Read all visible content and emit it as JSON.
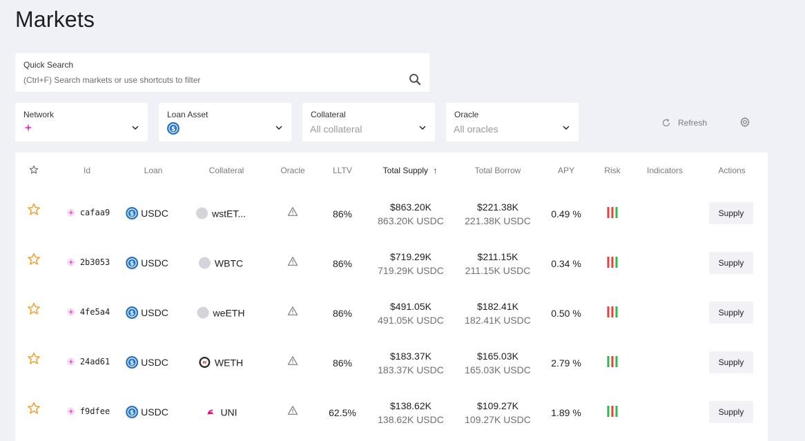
{
  "page": {
    "title": "Markets"
  },
  "search": {
    "label": "Quick Search",
    "placeholder": "(Ctrl+F) Search markets or use shortcuts to filter"
  },
  "filters": [
    {
      "label": "Network",
      "value": ""
    },
    {
      "label": "Loan Asset",
      "value": ""
    },
    {
      "label": "Collateral",
      "value": "All collateral"
    },
    {
      "label": "Oracle",
      "value": "All oracles"
    }
  ],
  "toolbar": {
    "refresh_label": "Refresh"
  },
  "table": {
    "headers": [
      "Id",
      "Loan",
      "Collateral",
      "Oracle",
      "LLTV",
      "Total Supply",
      "Total Borrow",
      "APY",
      "Risk",
      "Indicators",
      "Actions"
    ],
    "sort_indicator": "↑",
    "action_label": "Supply",
    "rows": [
      {
        "id": "cafaa9",
        "loan": "USDC",
        "collateral": "wstET...",
        "collateral_icon": "gray-dot",
        "lltv": "86%",
        "supply_usd": "$863.20K",
        "supply_token": "863.20K USDC",
        "borrow_usd": "$221.38K",
        "borrow_token": "221.38K USDC",
        "apy": "0.49 %",
        "risk": [
          "red",
          "red",
          "green"
        ]
      },
      {
        "id": "2b3053",
        "loan": "USDC",
        "collateral": "WBTC",
        "collateral_icon": "gray-dot",
        "lltv": "86%",
        "supply_usd": "$719.29K",
        "supply_token": "719.29K USDC",
        "borrow_usd": "$211.15K",
        "borrow_token": "211.15K USDC",
        "apy": "0.34 %",
        "risk": [
          "red",
          "red",
          "green"
        ]
      },
      {
        "id": "4fe5a4",
        "loan": "USDC",
        "collateral": "weETH",
        "collateral_icon": "gray-dot",
        "lltv": "86%",
        "supply_usd": "$491.05K",
        "supply_token": "491.05K USDC",
        "borrow_usd": "$182.41K",
        "borrow_token": "182.41K USDC",
        "apy": "0.50 %",
        "risk": [
          "red",
          "red",
          "green"
        ]
      },
      {
        "id": "24ad61",
        "loan": "USDC",
        "collateral": "WETH",
        "collateral_icon": "weth",
        "lltv": "86%",
        "supply_usd": "$183.37K",
        "supply_token": "183.37K USDC",
        "borrow_usd": "$165.03K",
        "borrow_token": "165.03K USDC",
        "apy": "2.79 %",
        "risk": [
          "green",
          "red",
          "green"
        ]
      },
      {
        "id": "f9dfee",
        "loan": "USDC",
        "collateral": "UNI",
        "collateral_icon": "uni",
        "lltv": "62.5%",
        "supply_usd": "$138.62K",
        "supply_token": "138.62K USDC",
        "borrow_usd": "$109.27K",
        "borrow_token": "109.27K USDC",
        "apy": "1.89 %",
        "risk": [
          "green",
          "red",
          "green"
        ]
      }
    ]
  },
  "colors": {
    "star": "#f0a030",
    "usdc": "#2775ca",
    "network": "#e040c0",
    "risk_red": "#e5413a",
    "risk_green": "#2fb84f"
  }
}
